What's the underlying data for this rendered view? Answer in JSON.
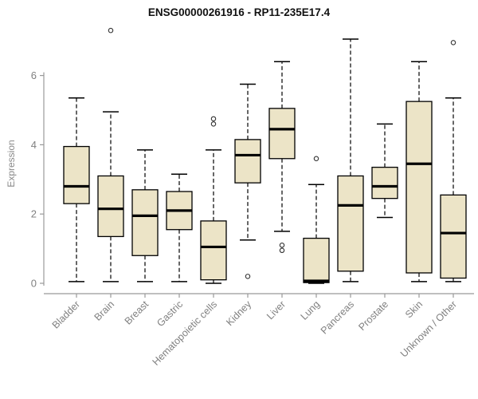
{
  "chart_data": {
    "type": "boxplot",
    "title": "ENSG00000261916 - RP11-235E17.4",
    "ylabel": "Expression",
    "ylim": [
      0,
      7.4
    ],
    "yticks": [
      0,
      2,
      4,
      6
    ],
    "grid": false,
    "legend": "none",
    "box_fill": "#ece4c7",
    "box_stroke": "#000000",
    "axis_color": "#999999",
    "label_color": "#808080",
    "categories": [
      "Bladder",
      "Brain",
      "Breast",
      "Gastric",
      "Hematopoietic cells",
      "Kidney",
      "Liver",
      "Lung",
      "Pancreas",
      "Prostate",
      "Skin",
      "Unknown / Other"
    ],
    "series": [
      {
        "category": "Bladder",
        "whisker_low": 0.05,
        "q1": 2.3,
        "median": 2.8,
        "q3": 3.95,
        "whisker_high": 5.35,
        "outliers": []
      },
      {
        "category": "Brain",
        "whisker_low": 0.05,
        "q1": 1.35,
        "median": 2.15,
        "q3": 3.1,
        "whisker_high": 4.95,
        "outliers": [
          7.3
        ]
      },
      {
        "category": "Breast",
        "whisker_low": 0.05,
        "q1": 0.8,
        "median": 1.95,
        "q3": 2.7,
        "whisker_high": 3.85,
        "outliers": []
      },
      {
        "category": "Gastric",
        "whisker_low": 0.05,
        "q1": 1.55,
        "median": 2.1,
        "q3": 2.65,
        "whisker_high": 3.15,
        "outliers": []
      },
      {
        "category": "Hematopoietic cells",
        "whisker_low": 0.0,
        "q1": 0.1,
        "median": 1.05,
        "q3": 1.8,
        "whisker_high": 3.85,
        "outliers": [
          4.75,
          4.6
        ]
      },
      {
        "category": "Kidney",
        "whisker_low": 1.25,
        "q1": 2.9,
        "median": 3.7,
        "q3": 4.15,
        "whisker_high": 5.75,
        "outliers": [
          0.2
        ]
      },
      {
        "category": "Liver",
        "whisker_low": 1.5,
        "q1": 3.6,
        "median": 4.45,
        "q3": 5.05,
        "whisker_high": 6.4,
        "outliers": [
          1.1,
          0.95
        ]
      },
      {
        "category": "Lung",
        "whisker_low": 0.0,
        "q1": 0.02,
        "median": 0.07,
        "q3": 1.3,
        "whisker_high": 2.85,
        "outliers": [
          3.6
        ]
      },
      {
        "category": "Pancreas",
        "whisker_low": 0.05,
        "q1": 0.35,
        "median": 2.25,
        "q3": 3.1,
        "whisker_high": 7.05,
        "outliers": []
      },
      {
        "category": "Prostate",
        "whisker_low": 1.9,
        "q1": 2.45,
        "median": 2.8,
        "q3": 3.35,
        "whisker_high": 4.6,
        "outliers": []
      },
      {
        "category": "Skin",
        "whisker_low": 0.05,
        "q1": 0.3,
        "median": 3.45,
        "q3": 5.25,
        "whisker_high": 6.4,
        "outliers": []
      },
      {
        "category": "Unknown / Other",
        "whisker_low": 0.05,
        "q1": 0.15,
        "median": 1.45,
        "q3": 2.55,
        "whisker_high": 5.35,
        "outliers": [
          6.95
        ]
      }
    ]
  }
}
